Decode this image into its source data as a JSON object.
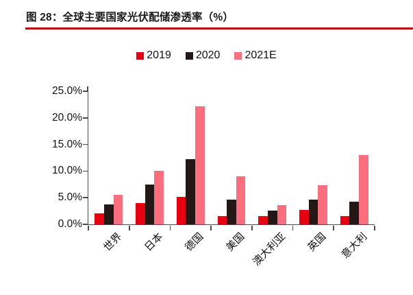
{
  "header": {
    "title": "图 28：全球主要国家光伏配储渗透率（%）"
  },
  "colors": {
    "title_text": "#1a1a1a",
    "title_rule": "#bd0008",
    "axis": "#4a4a4a",
    "series_2019": "#e60012",
    "series_2020": "#231815",
    "series_2021e": "#fa6e7e"
  },
  "chart_data": {
    "type": "bar",
    "title": "图 28：全球主要国家光伏配储渗透率（%）",
    "categories": [
      "世界",
      "日本",
      "德国",
      "美国",
      "澳大利亚",
      "英国",
      "意大利"
    ],
    "series": [
      {
        "name": "2019",
        "color": "#e60012",
        "values": [
          2.0,
          4.0,
          5.1,
          1.5,
          1.5,
          2.7,
          1.6
        ]
      },
      {
        "name": "2020",
        "color": "#231815",
        "values": [
          3.7,
          7.5,
          12.3,
          4.7,
          2.6,
          4.6,
          4.2
        ]
      },
      {
        "name": "2021E",
        "color": "#fa6e7e",
        "values": [
          5.6,
          10.0,
          22.2,
          9.0,
          3.6,
          7.3,
          13.0
        ]
      }
    ],
    "ylim": [
      0,
      25
    ],
    "ytick_step": 5,
    "ytick_labels": [
      "0.0%",
      "5.0%",
      "10.0%",
      "15.0%",
      "20.0%",
      "25.0%"
    ],
    "xlabel": "",
    "ylabel": "",
    "legend_position": "top-center",
    "grid": false,
    "x_label_rotation_deg": 45
  }
}
